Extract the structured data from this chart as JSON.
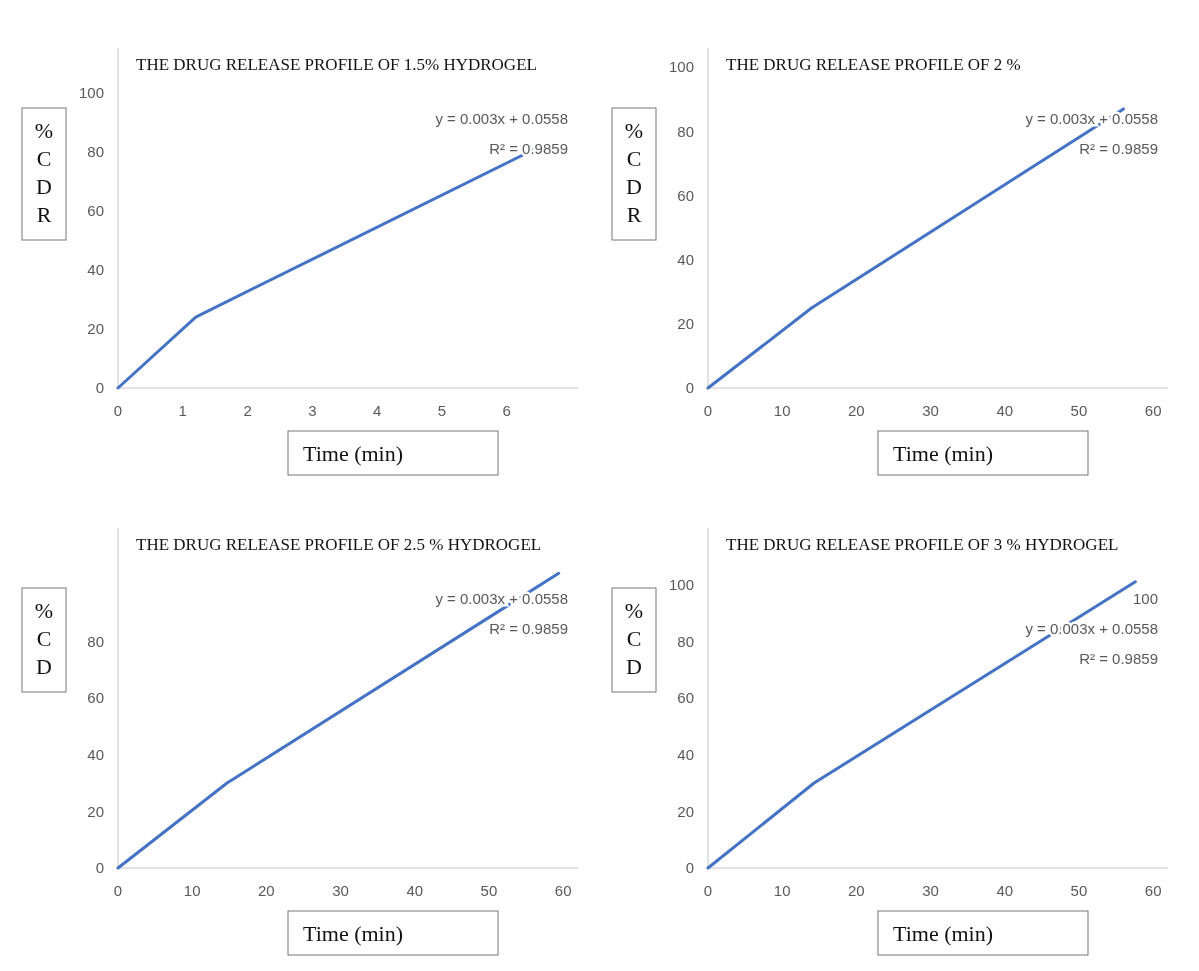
{
  "chart_data": [
    {
      "type": "line",
      "title": "THE DRUG RELEASE PROFILE OF 1.5% HYDROGEL",
      "xlabel": "Time (min)",
      "ylabel": "%CDR",
      "x": [
        0,
        1.2,
        6.45
      ],
      "series": [
        {
          "color": "#4472c4",
          "values": [
            0,
            24,
            81
          ]
        }
      ],
      "xlim": [
        0,
        7.1
      ],
      "xticks": [
        0,
        1,
        2,
        3,
        4,
        5,
        6
      ],
      "ylim": [
        0,
        115
      ],
      "yticks": [
        0,
        20,
        40,
        60,
        80,
        100
      ],
      "grid": false,
      "marker": "none",
      "line_style": "solid",
      "annotations": [
        "y = 0.003x + 0.0558",
        "R² = 0.9859"
      ]
    },
    {
      "type": "line",
      "title": "THE DRUG RELEASE PROFILE OF 2 %",
      "xlabel": "Time (min)",
      "ylabel": "%CDR",
      "x": [
        0,
        14,
        56
      ],
      "series": [
        {
          "color": "#4472c4",
          "values": [
            0,
            25,
            87
          ]
        }
      ],
      "xlim": [
        0,
        62
      ],
      "xticks": [
        0,
        10,
        20,
        30,
        40,
        50,
        60
      ],
      "ylim": [
        0,
        106
      ],
      "yticks": [
        0,
        20,
        40,
        60,
        80,
        100
      ],
      "grid": false,
      "marker": "none",
      "line_style": "solid",
      "annotations": [
        "y = 0.003x + 0.0558",
        "R² = 0.9859"
      ]
    },
    {
      "type": "line",
      "title": "THE DRUG RELEASE PROFILE OF 2.5 % HYDROGEL",
      "xlabel": "Time (min)",
      "ylabel": "%CD",
      "x": [
        0,
        14.7,
        59.4
      ],
      "series": [
        {
          "color": "#4472c4",
          "values": [
            0,
            30,
            104
          ]
        }
      ],
      "xlim": [
        0,
        62
      ],
      "xticks": [
        0,
        10,
        20,
        30,
        40,
        50,
        60
      ],
      "ylim": [
        0,
        120
      ],
      "yticks": [
        0,
        20,
        40,
        60,
        80
      ],
      "grid": false,
      "marker": "none",
      "line_style": "solid",
      "annotations": [
        "y = 0.003x + 0.0558",
        "R² = 0.9859"
      ]
    },
    {
      "type": "line",
      "title": "THE DRUG RELEASE PROFILE OF 3 % HYDROGEL",
      "xlabel": "Time (min)",
      "ylabel": "%CD",
      "x": [
        0,
        14.3,
        57.6
      ],
      "series": [
        {
          "color": "#4472c4",
          "values": [
            0,
            30,
            101
          ]
        }
      ],
      "xlim": [
        0,
        62
      ],
      "xticks": [
        0,
        10,
        20,
        30,
        40,
        50,
        60
      ],
      "ylim": [
        0,
        120
      ],
      "yticks": [
        0,
        20,
        40,
        60,
        80,
        100
      ],
      "grid": false,
      "marker": "none",
      "line_style": "solid",
      "annotations": [
        "100",
        "y = 0.003x + 0.0558",
        "R² = 0.9859"
      ]
    }
  ]
}
